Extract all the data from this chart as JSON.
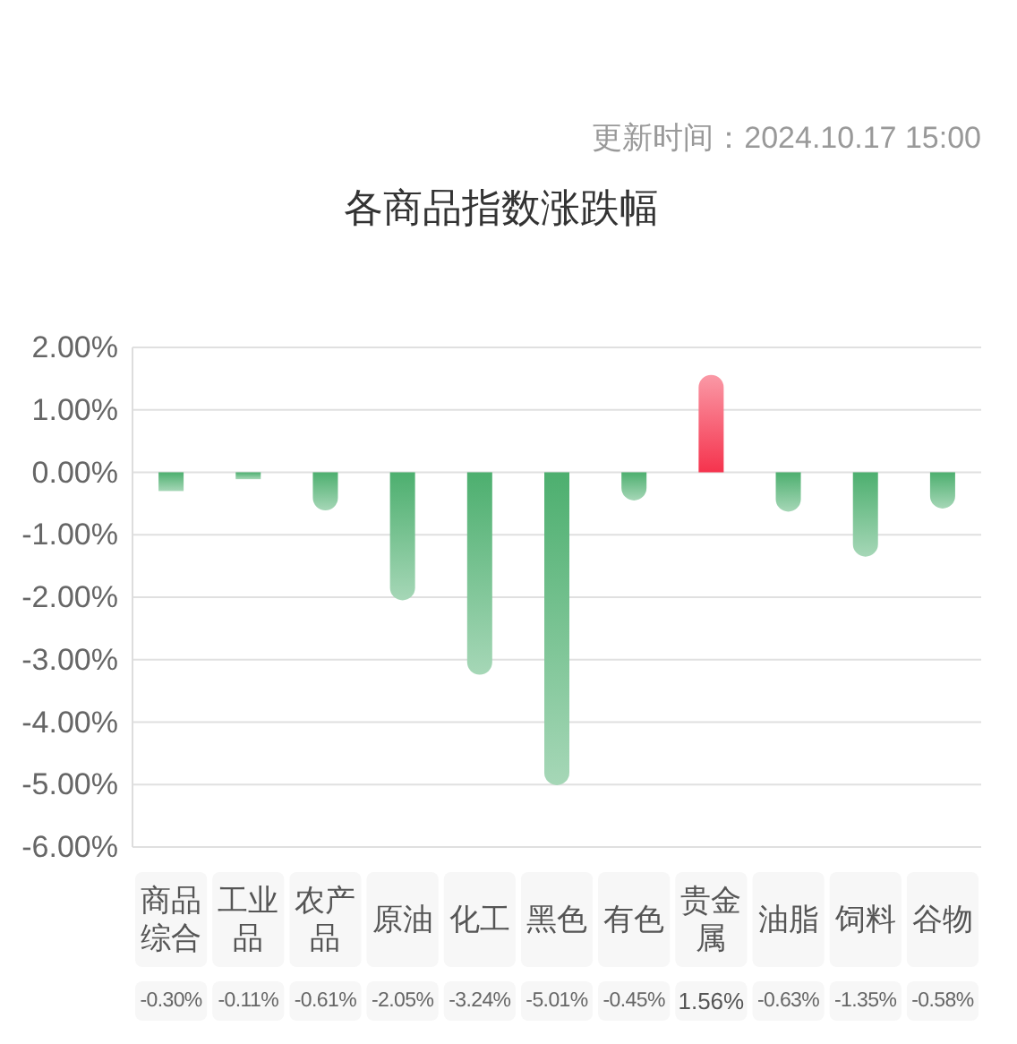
{
  "chart_data": {
    "type": "bar",
    "title": "各商品指数涨跌幅",
    "annotations": [
      "更新时间：2024.10.17 15:00"
    ],
    "categories": [
      "商品综合",
      "工业品",
      "农产品",
      "原油",
      "化工",
      "黑色",
      "有色",
      "贵金属",
      "油脂",
      "饲料",
      "谷物"
    ],
    "values": [
      -0.3,
      -0.11,
      -0.61,
      -2.05,
      -3.24,
      -5.01,
      -0.45,
      1.56,
      -0.63,
      -1.35,
      -0.58
    ],
    "colors": [
      "#4daf6f",
      "#4daf6f",
      "#4daf6f",
      "#4daf6f",
      "#4daf6f",
      "#4daf6f",
      "#4daf6f",
      "#f5334d",
      "#4daf6f",
      "#4daf6f",
      "#4daf6f"
    ],
    "value_labels": [
      "-0.30%",
      "-0.11%",
      "-0.61%",
      "-2.05%",
      "-3.24%",
      "-5.01%",
      "-0.45%",
      "1.56%",
      "-0.63%",
      "-1.35%",
      "-0.58%"
    ],
    "ylim": [
      -6,
      2
    ],
    "yticks": [
      {
        "value": 2,
        "label": "2.00%"
      },
      {
        "value": 1,
        "label": "1.00%"
      },
      {
        "value": 0,
        "label": "0.00%"
      },
      {
        "value": -1,
        "label": "-1.00%"
      },
      {
        "value": -2,
        "label": "-2.00%"
      },
      {
        "value": -3,
        "label": "-3.00%"
      },
      {
        "value": -4,
        "label": "-4.00%"
      },
      {
        "value": -5,
        "label": "-5.00%"
      },
      {
        "value": -6,
        "label": "-6.00%"
      }
    ],
    "grid": "y"
  }
}
